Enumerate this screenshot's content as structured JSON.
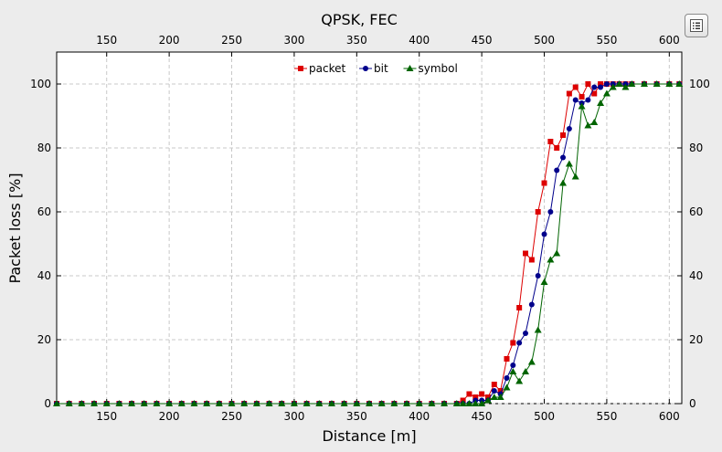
{
  "chart_data": {
    "type": "line",
    "title": "QPSK, FEC",
    "xlabel": "Distance [m]",
    "ylabel": "Packet loss [%]",
    "xlim": [
      110,
      610
    ],
    "ylim": [
      0,
      110
    ],
    "xticks": [
      150,
      200,
      250,
      300,
      350,
      400,
      450,
      500,
      550,
      600
    ],
    "yticks": [
      0,
      20,
      40,
      60,
      80,
      100
    ],
    "grid": true,
    "legend_position": "top-center",
    "series": [
      {
        "name": "packet",
        "color": "#dd0000",
        "marker": "square",
        "x": [
          110,
          120,
          130,
          140,
          150,
          160,
          170,
          180,
          190,
          200,
          210,
          220,
          230,
          240,
          250,
          260,
          270,
          280,
          290,
          300,
          310,
          320,
          330,
          340,
          350,
          360,
          370,
          380,
          390,
          400,
          410,
          420,
          430,
          435,
          440,
          445,
          450,
          455,
          460,
          465,
          470,
          475,
          480,
          485,
          490,
          495,
          500,
          505,
          510,
          515,
          520,
          525,
          530,
          535,
          540,
          545,
          550,
          555,
          560,
          565,
          570,
          580,
          590,
          600,
          608
        ],
        "y": [
          0,
          0,
          0,
          0,
          0,
          0,
          0,
          0,
          0,
          0,
          0,
          0,
          0,
          0,
          0,
          0,
          0,
          0,
          0,
          0,
          0,
          0,
          0,
          0,
          0,
          0,
          0,
          0,
          0,
          0,
          0,
          0,
          0,
          1,
          3,
          2,
          3,
          2,
          6,
          4,
          14,
          19,
          30,
          47,
          45,
          60,
          69,
          82,
          80,
          84,
          97,
          99,
          96,
          100,
          97,
          100,
          100,
          100,
          100,
          100,
          100,
          100,
          100,
          100,
          100
        ]
      },
      {
        "name": "bit",
        "color": "#00008b",
        "marker": "circle",
        "x": [
          110,
          120,
          130,
          140,
          150,
          160,
          170,
          180,
          190,
          200,
          210,
          220,
          230,
          240,
          250,
          260,
          270,
          280,
          290,
          300,
          310,
          320,
          330,
          340,
          350,
          360,
          370,
          380,
          390,
          400,
          410,
          420,
          430,
          435,
          440,
          445,
          450,
          455,
          460,
          465,
          470,
          475,
          480,
          485,
          490,
          495,
          500,
          505,
          510,
          515,
          520,
          525,
          530,
          535,
          540,
          545,
          550,
          555,
          560,
          565,
          570,
          580,
          590,
          600,
          608
        ],
        "y": [
          0,
          0,
          0,
          0,
          0,
          0,
          0,
          0,
          0,
          0,
          0,
          0,
          0,
          0,
          0,
          0,
          0,
          0,
          0,
          0,
          0,
          0,
          0,
          0,
          0,
          0,
          0,
          0,
          0,
          0,
          0,
          0,
          0,
          0,
          0,
          1,
          1,
          1,
          4,
          3,
          8,
          12,
          19,
          22,
          31,
          40,
          53,
          60,
          73,
          77,
          86,
          95,
          94,
          95,
          99,
          99,
          100,
          100,
          100,
          100,
          100,
          100,
          100,
          100,
          100
        ]
      },
      {
        "name": "symbol",
        "color": "#006400",
        "marker": "triangle",
        "x": [
          110,
          120,
          130,
          140,
          150,
          160,
          170,
          180,
          190,
          200,
          210,
          220,
          230,
          240,
          250,
          260,
          270,
          280,
          290,
          300,
          310,
          320,
          330,
          340,
          350,
          360,
          370,
          380,
          390,
          400,
          410,
          420,
          430,
          435,
          440,
          445,
          450,
          455,
          460,
          465,
          470,
          475,
          480,
          485,
          490,
          495,
          500,
          505,
          510,
          515,
          520,
          525,
          530,
          535,
          540,
          545,
          550,
          555,
          560,
          565,
          570,
          580,
          590,
          600,
          608
        ],
        "y": [
          0,
          0,
          0,
          0,
          0,
          0,
          0,
          0,
          0,
          0,
          0,
          0,
          0,
          0,
          0,
          0,
          0,
          0,
          0,
          0,
          0,
          0,
          0,
          0,
          0,
          0,
          0,
          0,
          0,
          0,
          0,
          0,
          0,
          0,
          0,
          0,
          0,
          1,
          2,
          2,
          5,
          10,
          7,
          10,
          13,
          23,
          38,
          45,
          47,
          69,
          75,
          71,
          93,
          87,
          88,
          94,
          97,
          99,
          100,
          99,
          100,
          100,
          100,
          100,
          100
        ]
      }
    ]
  },
  "icons": {
    "menu": "list-menu-icon"
  }
}
